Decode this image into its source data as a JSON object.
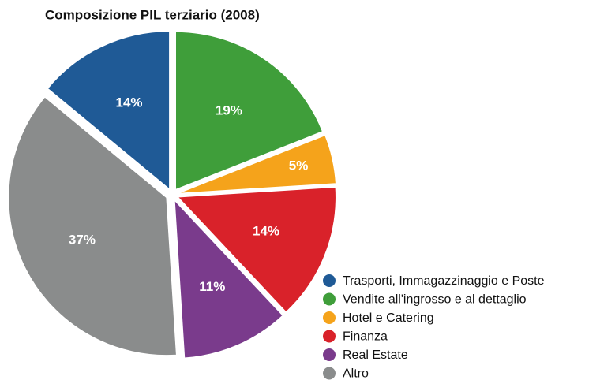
{
  "chart_data": {
    "type": "pie",
    "title": "Composizione PIL terziario (2008)",
    "categories": [
      "Trasporti, Immagazzinaggio e Poste",
      "Vendite all'ingrosso e al dettaglio",
      "Hotel e Catering",
      "Finanza",
      "Real Estate",
      "Altro"
    ],
    "values": [
      14,
      19,
      5,
      14,
      11,
      37
    ],
    "value_labels": [
      "14%",
      "19%",
      "5%",
      "14%",
      "11%",
      "37%"
    ],
    "colors": [
      "#1f5a96",
      "#3f9e3a",
      "#f5a31b",
      "#d9222a",
      "#7a3b8c",
      "#8a8c8c"
    ],
    "legend": "bottom-right"
  }
}
